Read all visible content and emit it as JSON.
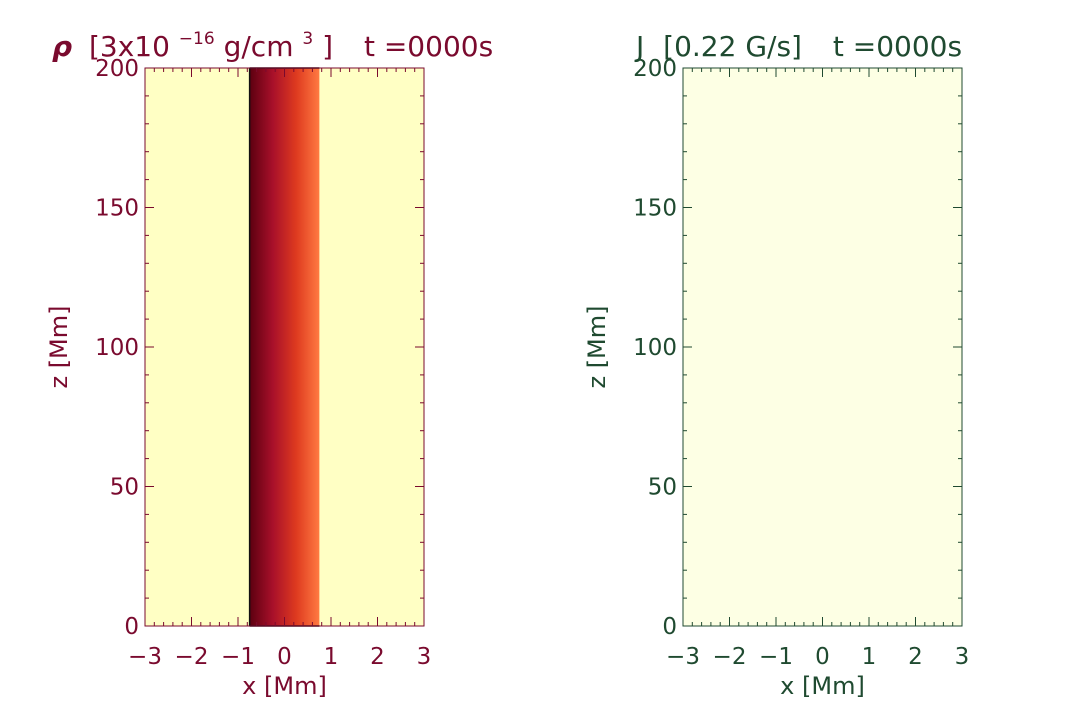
{
  "chart_data": [
    {
      "type": "heatmap",
      "title_symbol": "ρ",
      "title_unit_prefix": "[3x10",
      "title_unit_exponent": "−16",
      "title_unit_middle": " g/cm",
      "title_unit_power": "3",
      "title_unit_suffix": "]",
      "title_time": "t =0000s",
      "xlabel": "x [Mm]",
      "ylabel": "z [Mm]",
      "xlim": [
        -3,
        3
      ],
      "ylim": [
        0,
        200
      ],
      "xticks": [
        -3,
        -2,
        -1,
        0,
        1,
        2,
        3
      ],
      "yticks": [
        0,
        50,
        100,
        150,
        200
      ],
      "xtick_labels": [
        "−3",
        "−2",
        "−1",
        "0",
        "1",
        "2",
        "3"
      ],
      "ytick_labels": [
        "0",
        "50",
        "100",
        "150",
        "200"
      ],
      "label_color": "#7a0a2e",
      "background_color": "#ffffc4",
      "band": {
        "x_range": [
          -0.75,
          0.75
        ],
        "z_range": [
          0,
          200
        ],
        "gradient_colors": [
          "#5c0010",
          "#a8102a",
          "#de3a1f",
          "#ff7a42"
        ]
      }
    },
    {
      "type": "heatmap",
      "title_symbol": "J",
      "title_unit": "[0.22 G/s]",
      "title_time": "t =0000s",
      "xlabel": "x [Mm]",
      "ylabel": "z [Mm]",
      "xlim": [
        -3,
        3
      ],
      "ylim": [
        0,
        200
      ],
      "xticks": [
        -3,
        -2,
        -1,
        0,
        1,
        2,
        3
      ],
      "yticks": [
        0,
        50,
        100,
        150,
        200
      ],
      "xtick_labels": [
        "−3",
        "−2",
        "−1",
        "0",
        "1",
        "2",
        "3"
      ],
      "ytick_labels": [
        "0",
        "50",
        "100",
        "150",
        "200"
      ],
      "label_color": "#1f4a30",
      "background_color": "#fdffe4"
    }
  ]
}
